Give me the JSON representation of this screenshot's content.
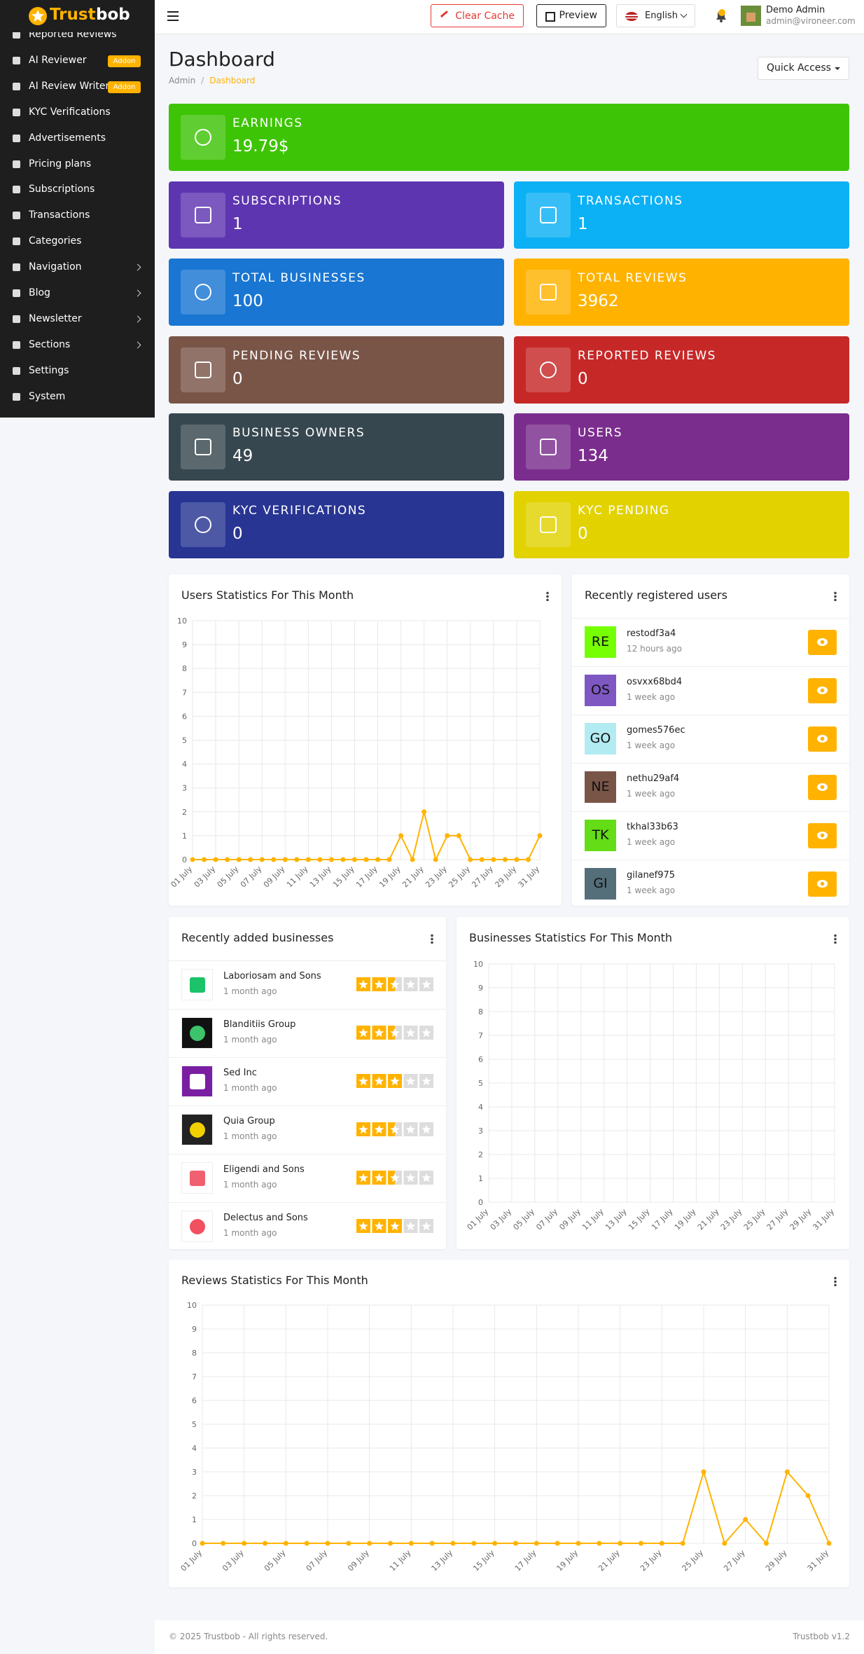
{
  "sidebar": {
    "brand_parts": [
      "Trust",
      "bob"
    ],
    "items": [
      {
        "label": "Reported Reviews"
      },
      {
        "label": "AI Reviewer",
        "badge": "Addon"
      },
      {
        "label": "AI Review Writer",
        "badge": "Addon"
      },
      {
        "label": "KYC Verifications"
      },
      {
        "label": "Advertisements"
      },
      {
        "label": "Pricing plans"
      },
      {
        "label": "Subscriptions"
      },
      {
        "label": "Transactions"
      },
      {
        "label": "Categories"
      },
      {
        "label": "Navigation",
        "submenu": true
      },
      {
        "label": "Blog",
        "submenu": true
      },
      {
        "label": "Newsletter",
        "submenu": true
      },
      {
        "label": "Sections",
        "submenu": true
      },
      {
        "label": "Settings"
      },
      {
        "label": "System"
      }
    ]
  },
  "header": {
    "clear_cache": "Clear Cache",
    "preview": "Preview",
    "language": "English",
    "user_name": "Demo Admin",
    "user_email": "admin@vironeer.com"
  },
  "page": {
    "title": "Dashboard",
    "breadcrumb": [
      "Admin",
      "Dashboard"
    ],
    "quick_access": "Quick Access"
  },
  "stats": [
    {
      "label": "EARNINGS",
      "value": "19.79$",
      "color": "#3ec406"
    },
    {
      "label": "SUBSCRIPTIONS",
      "value": "1",
      "color": "#5e35b1"
    },
    {
      "label": "TRANSACTIONS",
      "value": "1",
      "color": "#0bb0f5"
    },
    {
      "label": "TOTAL BUSINESSES",
      "value": "100",
      "color": "#1976d2"
    },
    {
      "label": "TOTAL REVIEWS",
      "value": "3962",
      "color": "#ffb300"
    },
    {
      "label": "PENDING REVIEWS",
      "value": "0",
      "color": "#795548"
    },
    {
      "label": "REPORTED REVIEWS",
      "value": "0",
      "color": "#c62828"
    },
    {
      "label": "BUSINESS OWNERS",
      "value": "49",
      "color": "#37474f"
    },
    {
      "label": "USERS",
      "value": "134",
      "color": "#7b2d8e"
    },
    {
      "label": "KYC VERIFICATIONS",
      "value": "0",
      "color": "#283593"
    },
    {
      "label": "KYC PENDING",
      "value": "0",
      "color": "#e2d200"
    }
  ],
  "users_chart": {
    "type": "line",
    "title": "Users Statistics For This Month",
    "color": "#ffb300",
    "categories": [
      "01 July",
      null,
      "03 July",
      null,
      "05 July",
      null,
      "07 July",
      null,
      "09 July",
      null,
      "11 July",
      null,
      "13 July",
      null,
      "15 July",
      null,
      "17 July",
      null,
      "19 July",
      null,
      "21 July",
      null,
      "23 July",
      null,
      "25 July",
      null,
      "27 July",
      null,
      "29 July",
      null,
      "31 July"
    ],
    "values": [
      0,
      0,
      0,
      0,
      0,
      0,
      0,
      0,
      0,
      0,
      0,
      0,
      0,
      0,
      0,
      0,
      0,
      0,
      1,
      0,
      2,
      0,
      1,
      1,
      0,
      0,
      0,
      0,
      0,
      0,
      1
    ],
    "ylim": [
      0,
      10
    ],
    "yticks": [
      0,
      1,
      2,
      3,
      4,
      5,
      6,
      7,
      8,
      9,
      10
    ],
    "grid": true
  },
  "recent_users": {
    "title": "Recently registered users",
    "items": [
      {
        "initials": "RE",
        "name": "restodf3a4",
        "time": "12 hours ago",
        "color": "#76ff03"
      },
      {
        "initials": "OS",
        "name": "osvxx68bd4",
        "time": "1 week ago",
        "color": "#7e57c2"
      },
      {
        "initials": "GO",
        "name": "gomes576ec",
        "time": "1 week ago",
        "color": "#b2ebf2"
      },
      {
        "initials": "NE",
        "name": "nethu29af4",
        "time": "1 week ago",
        "color": "#795548"
      },
      {
        "initials": "TK",
        "name": "tkhal33b63",
        "time": "1 week ago",
        "color": "#64dd17"
      },
      {
        "initials": "GI",
        "name": "gilanef975",
        "time": "1 week ago",
        "color": "#546e7a"
      }
    ]
  },
  "recent_businesses": {
    "title": "Recently added businesses",
    "items": [
      {
        "name": "Laboriosam and Sons",
        "time": "1 month ago",
        "rating": 2.5
      },
      {
        "name": "Blanditiis Group",
        "time": "1 month ago",
        "rating": 2.5
      },
      {
        "name": "Sed Inc",
        "time": "1 month ago",
        "rating": 3
      },
      {
        "name": "Quia Group",
        "time": "1 month ago",
        "rating": 2.5
      },
      {
        "name": "Eligendi and Sons",
        "time": "1 month ago",
        "rating": 2.5
      },
      {
        "name": "Delectus and Sons",
        "time": "1 month ago",
        "rating": 3
      }
    ]
  },
  "businesses_chart": {
    "type": "line",
    "title": "Businesses Statistics For This Month",
    "color": "#ffb300",
    "categories": [
      "01 July",
      null,
      "03 July",
      null,
      "05 July",
      null,
      "07 July",
      null,
      "09 July",
      null,
      "11 July",
      null,
      "13 July",
      null,
      "15 July",
      null,
      "17 July",
      null,
      "19 July",
      null,
      "21 July",
      null,
      "23 July",
      null,
      "25 July",
      null,
      "27 July",
      null,
      "29 July",
      null,
      "31 July"
    ],
    "ylim": [
      0,
      10
    ],
    "yticks": [
      0,
      1,
      2,
      3,
      4,
      5,
      6,
      7,
      8,
      9,
      10
    ],
    "grid": true
  },
  "reviews_chart": {
    "type": "line",
    "title": "Reviews Statistics For This Month",
    "color": "#ffb300",
    "categories": [
      "01 July",
      null,
      "03 July",
      null,
      "05 July",
      null,
      "07 July",
      null,
      "09 July",
      null,
      "11 July",
      null,
      "13 July",
      null,
      "15 July",
      null,
      "17 July",
      null,
      "19 July",
      null,
      "21 July",
      null,
      "23 July",
      null,
      "25 July",
      null,
      "27 July",
      null,
      "29 July",
      null,
      "31 July"
    ],
    "values": [
      0,
      0,
      0,
      0,
      0,
      0,
      0,
      0,
      0,
      0,
      0,
      0,
      0,
      0,
      0,
      0,
      0,
      0,
      0,
      0,
      0,
      0,
      0,
      0,
      3,
      0,
      1,
      0,
      3,
      2,
      0
    ],
    "ylim": [
      0,
      10
    ],
    "yticks": [
      0,
      1,
      2,
      3,
      4,
      5,
      6,
      7,
      8,
      9,
      10
    ],
    "grid": true
  },
  "footer": {
    "copyright": "© 2025 Trustbob - All rights reserved.",
    "version": "Trustbob v1.2"
  }
}
